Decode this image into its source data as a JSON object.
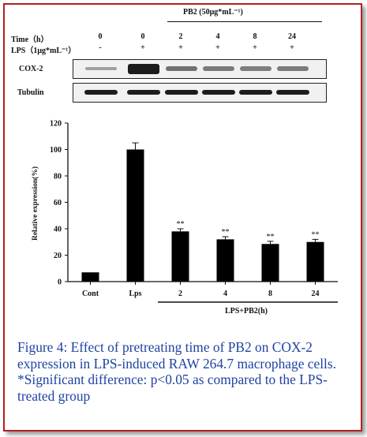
{
  "blot": {
    "pb2_header": "PB2 (50μg*mL⁻¹)",
    "time_label": "Time（h）",
    "lps_label": "LPS（1μg*mL⁻¹）",
    "time_values": [
      "0",
      "0",
      "2",
      "4",
      "8",
      "24"
    ],
    "lps_values": [
      "-",
      "+",
      "+",
      "+",
      "+",
      "+"
    ],
    "cox2_label": "COX-2",
    "tubulin_label": "Tubulin",
    "cox2_intensity": [
      0.05,
      1.0,
      0.38,
      0.33,
      0.3,
      0.31
    ]
  },
  "chart_data": {
    "type": "bar",
    "categories": [
      "Cont",
      "Lps",
      "2",
      "4",
      "8",
      "24"
    ],
    "values": [
      7,
      100,
      38,
      32,
      28.5,
      30
    ],
    "errors": [
      0,
      5,
      2,
      2,
      2,
      2
    ],
    "annotations": [
      "",
      "",
      "**",
      "**",
      "**",
      "**"
    ],
    "ylabel": "Relative expression(%)",
    "xlabel": "LPS+PB2(h)",
    "ylim": [
      0,
      120
    ],
    "yticks": [
      "0",
      "20",
      "40",
      "60",
      "80",
      "100",
      "120"
    ],
    "bar_color": "#000000"
  },
  "caption": "Figure 4: Effect of pretreating time of PB2 on COX-2 expression in LPS-induced RAW 264.7 macrophage cells. *Significant difference: p<0.05 as compared to the LPS-treated group"
}
